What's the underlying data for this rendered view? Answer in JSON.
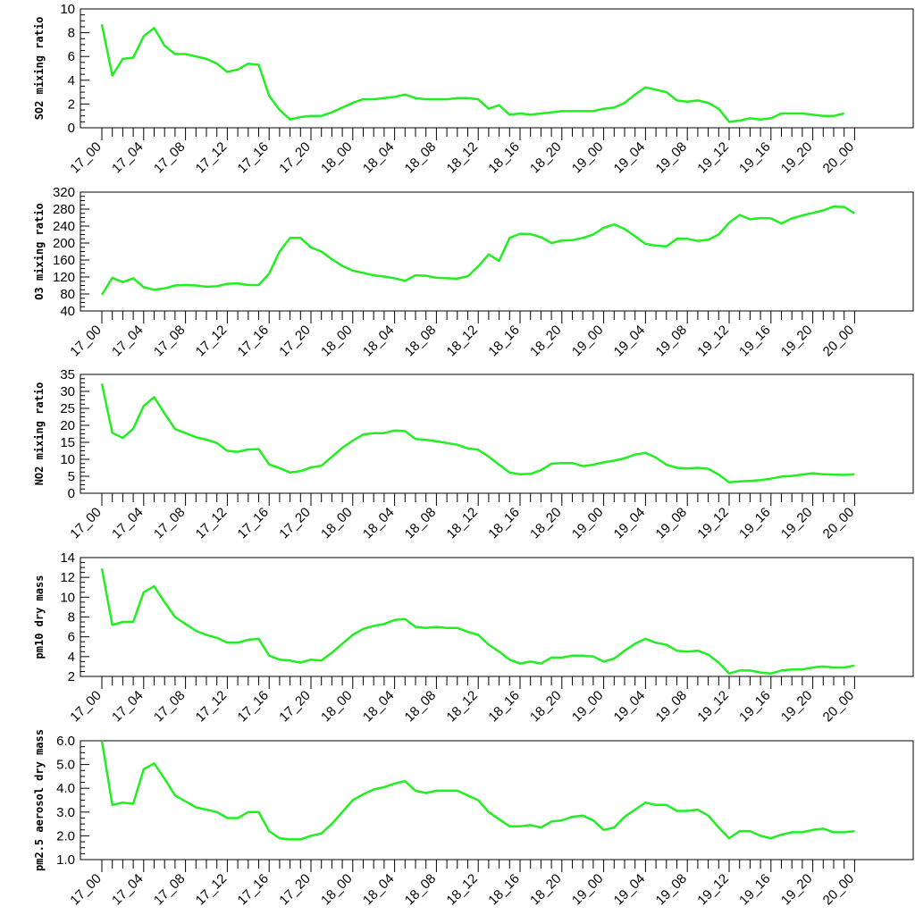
{
  "chart_data": [
    {
      "type": "line",
      "ylabel": "SO2 mixing ratio",
      "ylim": [
        0,
        10
      ],
      "yticks": [
        "0",
        "2",
        "4",
        "6",
        "8",
        "10"
      ],
      "xtick_labels": [
        "17_00",
        "17_04",
        "17_08",
        "17_12",
        "17_16",
        "17_20",
        "18_00",
        "18_04",
        "18_08",
        "18_12",
        "18_16",
        "18_20",
        "19_00",
        "19_04",
        "19_08",
        "19_12",
        "19_16",
        "19_20",
        "20_00"
      ],
      "series": [
        {
          "color": "#22ee22",
          "values": [
            8.7,
            4.4,
            5.8,
            5.9,
            7.7,
            8.4,
            6.9,
            6.2,
            6.2,
            6.0,
            5.8,
            5.4,
            4.7,
            4.9,
            5.4,
            5.3,
            2.7,
            1.5,
            0.7,
            0.9,
            1.0,
            1.0,
            1.3,
            1.7,
            2.1,
            2.4,
            2.4,
            2.5,
            2.6,
            2.8,
            2.5,
            2.4,
            2.4,
            2.4,
            2.5,
            2.5,
            2.4,
            1.6,
            1.9,
            1.1,
            1.2,
            1.1,
            1.2,
            1.3,
            1.4,
            1.4,
            1.4,
            1.4,
            1.6,
            1.7,
            2.1,
            2.8,
            3.4,
            3.2,
            3.0,
            2.3,
            2.2,
            2.3,
            2.1,
            1.6,
            0.5,
            0.6,
            0.8,
            0.7,
            0.8,
            1.2,
            1.2,
            1.2,
            1.1,
            1.0,
            1.0,
            1.2
          ]
        }
      ]
    },
    {
      "type": "line",
      "ylabel": "O3 mixing ratio",
      "ylim": [
        40,
        320
      ],
      "yticks": [
        "40",
        "80",
        "120",
        "160",
        "200",
        "240",
        "280",
        "320"
      ],
      "xtick_labels": [
        "17_00",
        "17_04",
        "17_08",
        "17_12",
        "17_16",
        "17_20",
        "18_00",
        "18_04",
        "18_08",
        "18_12",
        "18_16",
        "18_20",
        "19_00",
        "19_04",
        "19_08",
        "19_12",
        "19_16",
        "19_20",
        "20_00"
      ],
      "series": [
        {
          "color": "#22ee22",
          "values": [
            78,
            118,
            108,
            117,
            96,
            90,
            93,
            100,
            101,
            100,
            97,
            98,
            104,
            105,
            101,
            101,
            128,
            180,
            212,
            212,
            190,
            180,
            162,
            146,
            135,
            130,
            124,
            121,
            117,
            111,
            124,
            123,
            118,
            117,
            116,
            122,
            145,
            173,
            158,
            212,
            222,
            221,
            214,
            200,
            206,
            207,
            212,
            220,
            236,
            244,
            233,
            216,
            198,
            194,
            192,
            210,
            210,
            205,
            208,
            220,
            248,
            266,
            256,
            259,
            258,
            246,
            258,
            265,
            271,
            277,
            286,
            285,
            270
          ]
        }
      ]
    },
    {
      "type": "line",
      "ylabel": "NO2 mixing ratio",
      "ylim": [
        0,
        35
      ],
      "yticks": [
        "0",
        "5",
        "10",
        "15",
        "20",
        "25",
        "30",
        "35"
      ],
      "xtick_labels": [
        "17_00",
        "17_04",
        "17_08",
        "17_12",
        "17_16",
        "17_20",
        "18_00",
        "18_04",
        "18_08",
        "18_12",
        "18_16",
        "18_20",
        "19_00",
        "19_04",
        "19_08",
        "19_12",
        "19_16",
        "19_20",
        "20_00"
      ],
      "series": [
        {
          "color": "#22ee22",
          "values": [
            32.3,
            17.8,
            16.3,
            19.0,
            25.7,
            28.3,
            23.5,
            18.9,
            17.7,
            16.5,
            15.8,
            14.8,
            12.5,
            12.2,
            12.9,
            13.0,
            8.5,
            7.4,
            6.1,
            6.5,
            7.6,
            8.1,
            10.7,
            13.4,
            15.5,
            17.3,
            17.7,
            17.7,
            18.5,
            18.3,
            16.0,
            15.7,
            15.3,
            14.8,
            14.3,
            13.2,
            12.8,
            10.8,
            8.4,
            6.1,
            5.6,
            5.7,
            6.8,
            8.7,
            8.9,
            8.9,
            8.0,
            8.4,
            9.1,
            9.6,
            10.3,
            11.4,
            11.9,
            10.5,
            8.4,
            7.5,
            7.3,
            7.5,
            7.2,
            5.5,
            3.2,
            3.5,
            3.6,
            3.9,
            4.3,
            4.9,
            5.1,
            5.5,
            5.9,
            5.6,
            5.5,
            5.4,
            5.6
          ]
        }
      ]
    },
    {
      "type": "line",
      "ylabel": "pm10 dry mass",
      "ylim": [
        2,
        14
      ],
      "yticks": [
        "2",
        "4",
        "6",
        "8",
        "10",
        "12",
        "14"
      ],
      "xtick_labels": [
        "17_00",
        "17_04",
        "17_08",
        "17_12",
        "17_16",
        "17_20",
        "18_00",
        "18_04",
        "18_08",
        "18_12",
        "18_16",
        "18_20",
        "19_00",
        "19_04",
        "19_08",
        "19_12",
        "19_16",
        "19_20",
        "20_00"
      ],
      "series": [
        {
          "color": "#22ee22",
          "values": [
            12.9,
            7.2,
            7.5,
            7.5,
            10.5,
            11.1,
            9.5,
            8.0,
            7.3,
            6.6,
            6.2,
            5.9,
            5.4,
            5.4,
            5.7,
            5.8,
            4.1,
            3.7,
            3.6,
            3.4,
            3.7,
            3.6,
            4.4,
            5.3,
            6.2,
            6.8,
            7.1,
            7.3,
            7.7,
            7.8,
            7.0,
            6.9,
            7.0,
            6.9,
            6.9,
            6.5,
            6.2,
            5.2,
            4.5,
            3.7,
            3.3,
            3.5,
            3.3,
            3.9,
            3.9,
            4.1,
            4.1,
            4.0,
            3.5,
            3.8,
            4.6,
            5.3,
            5.8,
            5.4,
            5.2,
            4.6,
            4.5,
            4.6,
            4.2,
            3.4,
            2.3,
            2.6,
            2.6,
            2.4,
            2.3,
            2.6,
            2.7,
            2.7,
            2.9,
            3.0,
            2.9,
            2.9,
            3.1
          ]
        }
      ]
    },
    {
      "type": "line",
      "ylabel": "pm2.5 aerosol dry mass",
      "ylim": [
        1,
        6
      ],
      "yticks": [
        "1.0",
        "2.0",
        "3.0",
        "4.0",
        "5.0",
        "6.0"
      ],
      "xtick_labels": [
        "17_00",
        "17_04",
        "17_08",
        "17_12",
        "17_16",
        "17_20",
        "18_00",
        "18_04",
        "18_08",
        "18_12",
        "18_16",
        "18_20",
        "19_00",
        "19_04",
        "19_08",
        "19_12",
        "19_16",
        "19_20",
        "20_00"
      ],
      "series": [
        {
          "color": "#22ee22",
          "values": [
            6.0,
            3.3,
            3.4,
            3.35,
            4.8,
            5.05,
            4.4,
            3.7,
            3.45,
            3.2,
            3.1,
            3.0,
            2.75,
            2.75,
            3.0,
            3.0,
            2.2,
            1.9,
            1.85,
            1.85,
            2.0,
            2.1,
            2.5,
            3.0,
            3.5,
            3.75,
            3.95,
            4.05,
            4.2,
            4.3,
            3.9,
            3.8,
            3.9,
            3.9,
            3.9,
            3.7,
            3.5,
            3.0,
            2.7,
            2.4,
            2.4,
            2.45,
            2.35,
            2.6,
            2.65,
            2.8,
            2.85,
            2.65,
            2.25,
            2.35,
            2.8,
            3.1,
            3.4,
            3.3,
            3.3,
            3.05,
            3.05,
            3.1,
            2.85,
            2.35,
            1.9,
            2.2,
            2.2,
            2.0,
            1.9,
            2.05,
            2.15,
            2.15,
            2.25,
            2.3,
            2.15,
            2.15,
            2.2
          ]
        }
      ]
    }
  ]
}
